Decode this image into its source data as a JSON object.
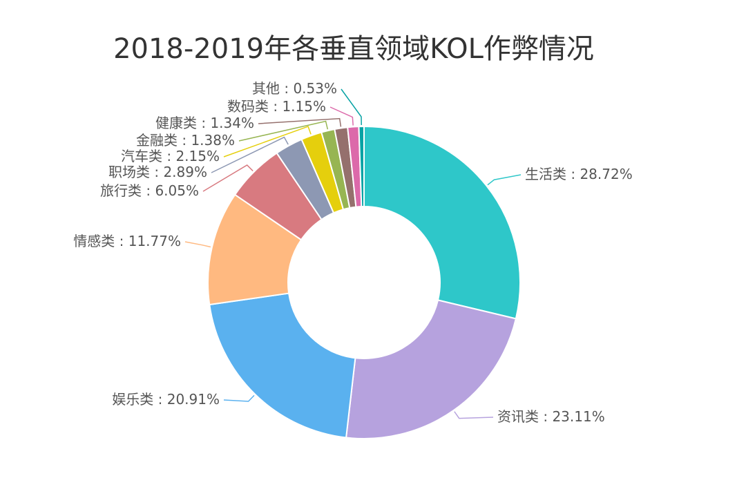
{
  "chart_data": {
    "type": "pie",
    "variant": "donut",
    "title": "2018-2019年各垂直领域KOL作弊情况",
    "separator": " : ",
    "unit": "%",
    "slices": [
      {
        "name": "生活类",
        "value": 28.72,
        "label": "28.72%",
        "color": "#2ec7c9"
      },
      {
        "name": "资讯类",
        "value": 23.11,
        "label": "23.11%",
        "color": "#b6a2de"
      },
      {
        "name": "娱乐类",
        "value": 20.91,
        "label": "20.91%",
        "color": "#5ab1ef"
      },
      {
        "name": "情感类",
        "value": 11.77,
        "label": "11.77%",
        "color": "#ffb980"
      },
      {
        "name": "旅行类",
        "value": 6.05,
        "label": "6.05%",
        "color": "#d87a80"
      },
      {
        "name": "职场类",
        "value": 2.89,
        "label": "2.89%",
        "color": "#8d98b3"
      },
      {
        "name": "汽车类",
        "value": 2.15,
        "label": "2.15%",
        "color": "#e5cf0d"
      },
      {
        "name": "金融类",
        "value": 1.38,
        "label": "1.38%",
        "color": "#97b552"
      },
      {
        "name": "健康类",
        "value": 1.34,
        "label": "1.34%",
        "color": "#95706d"
      },
      {
        "name": "数码类",
        "value": 1.15,
        "label": "1.15%",
        "color": "#dc69aa"
      },
      {
        "name": "其他",
        "value": 0.53,
        "label": "0.53%",
        "color": "#07a2a4"
      }
    ]
  }
}
